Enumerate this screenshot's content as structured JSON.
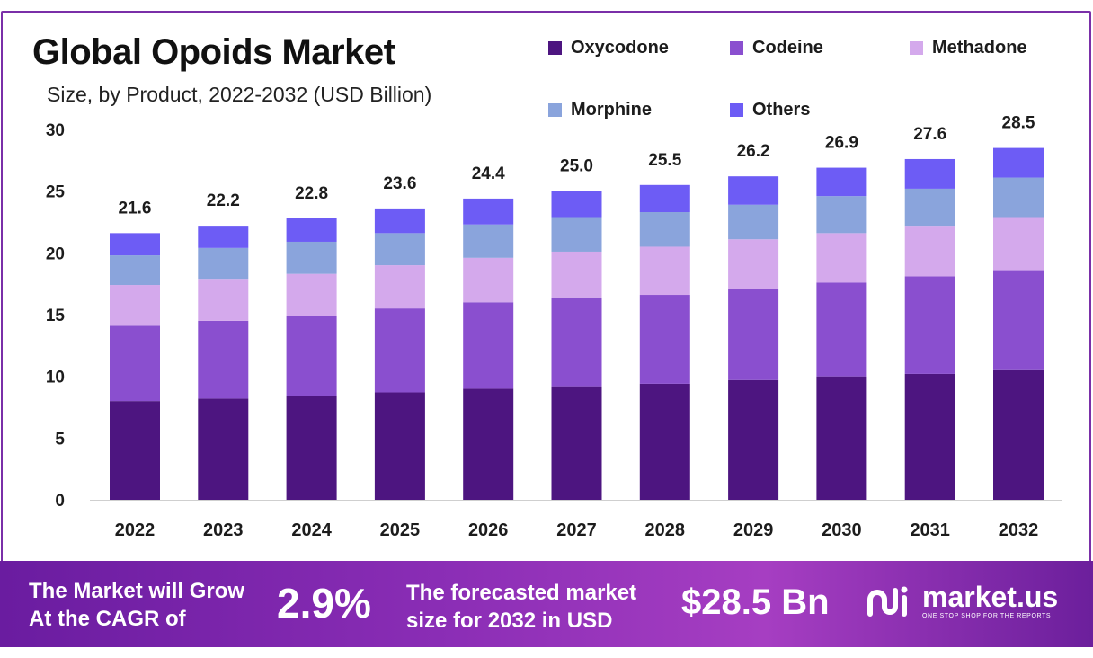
{
  "chart_data": {
    "type": "bar",
    "stacked": true,
    "title": "Global Opoids Market",
    "subtitle": "Size, by Product, 2022-2032 (USD Billion)",
    "categories": [
      "2022",
      "2023",
      "2024",
      "2025",
      "2026",
      "2027",
      "2028",
      "2029",
      "2030",
      "2031",
      "2032"
    ],
    "totals": [
      "21.6",
      "22.2",
      "22.8",
      "23.6",
      "24.4",
      "25.0",
      "25.5",
      "26.2",
      "26.9",
      "27.6",
      "28.5"
    ],
    "series": [
      {
        "name": "Oxycodone",
        "color": "#4d1580",
        "values": [
          8.0,
          8.2,
          8.4,
          8.7,
          9.0,
          9.2,
          9.4,
          9.7,
          10.0,
          10.2,
          10.5
        ]
      },
      {
        "name": "Codeine",
        "color": "#8a4fcf",
        "values": [
          6.1,
          6.3,
          6.5,
          6.8,
          7.0,
          7.2,
          7.2,
          7.4,
          7.6,
          7.9,
          8.1
        ]
      },
      {
        "name": "Methadone",
        "color": "#d4a9ec",
        "values": [
          3.3,
          3.4,
          3.4,
          3.5,
          3.6,
          3.7,
          3.9,
          4.0,
          4.0,
          4.1,
          4.3
        ]
      },
      {
        "name": "Morphine",
        "color": "#8aa4dc",
        "values": [
          2.4,
          2.5,
          2.6,
          2.6,
          2.7,
          2.8,
          2.8,
          2.8,
          3.0,
          3.0,
          3.2
        ]
      },
      {
        "name": "Others",
        "color": "#6d5cf5",
        "values": [
          1.8,
          1.8,
          1.9,
          2.0,
          2.1,
          2.1,
          2.2,
          2.3,
          2.3,
          2.4,
          2.4
        ]
      }
    ],
    "ylim": [
      0,
      30
    ],
    "yticks": [
      "0",
      "5",
      "10",
      "15",
      "20",
      "25",
      "30"
    ],
    "grid": false,
    "legend_position": "top-right"
  },
  "banner": {
    "cagr_label_line1": "The Market will Grow",
    "cagr_label_line2": "At the CAGR of",
    "cagr_value": "2.9%",
    "forecast_label_line1": "The forecasted market",
    "forecast_label_line2": "size for 2032 in USD",
    "forecast_value": "$28.5 Bn",
    "brand_name": "market.us",
    "brand_tagline": "ONE STOP SHOP FOR THE REPORTS"
  }
}
